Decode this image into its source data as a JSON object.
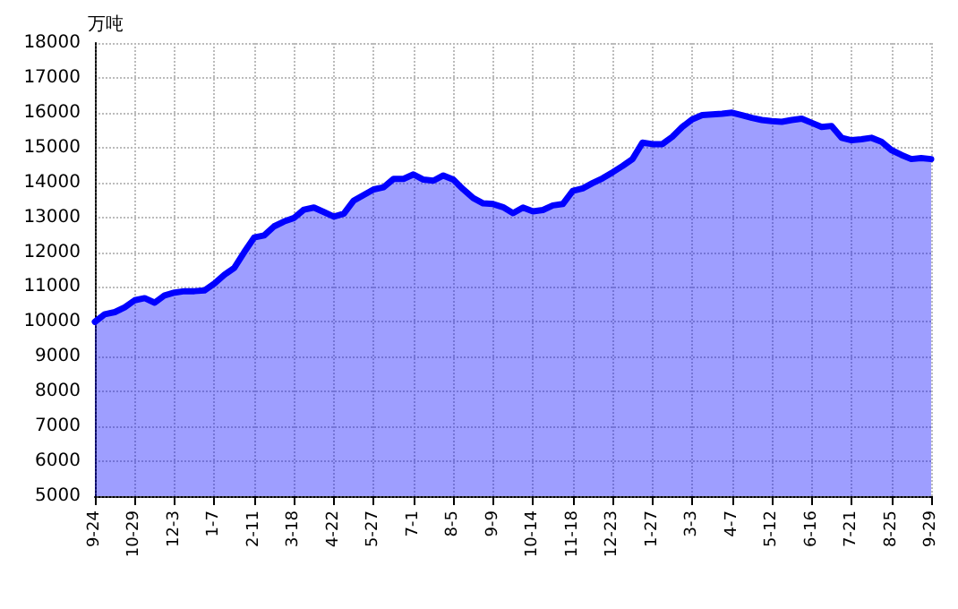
{
  "chart_data": {
    "type": "area",
    "ylabel": "万吨",
    "categories": [
      "9-24",
      null,
      null,
      null,
      "10-29",
      null,
      null,
      null,
      "12-3",
      null,
      null,
      null,
      "1-7",
      null,
      null,
      null,
      "2-11",
      null,
      null,
      null,
      "3-18",
      null,
      null,
      null,
      "4-22",
      null,
      null,
      null,
      "5-27",
      null,
      null,
      null,
      "7-1",
      null,
      null,
      null,
      "8-5",
      null,
      null,
      null,
      "9-9",
      null,
      null,
      null,
      "10-14",
      null,
      null,
      null,
      "11-18",
      null,
      null,
      null,
      "12-23",
      null,
      null,
      null,
      "1-27",
      null,
      null,
      null,
      "3-3",
      null,
      null,
      null,
      "4-7",
      null,
      null,
      null,
      "5-12",
      null,
      null,
      null,
      "6-16",
      null,
      null,
      null,
      "7-21",
      null,
      null,
      null,
      "8-25",
      null,
      null,
      null,
      "9-29"
    ],
    "series": [
      {
        "color": "#0000ff",
        "values": [
          10000,
          10220,
          10280,
          10420,
          10620,
          10680,
          10550,
          10760,
          10840,
          10880,
          10880,
          10900,
          11100,
          11350,
          11550,
          12000,
          12420,
          12480,
          12740,
          12880,
          12980,
          13220,
          13280,
          13150,
          13020,
          13100,
          13480,
          13640,
          13800,
          13860,
          14100,
          14100,
          14230,
          14080,
          14050,
          14200,
          14080,
          13800,
          13550,
          13400,
          13380,
          13290,
          13120,
          13280,
          13170,
          13210,
          13340,
          13380,
          13760,
          13830,
          13980,
          14120,
          14290,
          14470,
          14670,
          15140,
          15100,
          15100,
          15310,
          15590,
          15810,
          15930,
          15950,
          15970,
          16000,
          15930,
          15850,
          15790,
          15760,
          15740,
          15790,
          15830,
          15710,
          15590,
          15620,
          15280,
          15210,
          15240,
          15280,
          15170,
          14930,
          14790,
          14670,
          14700,
          14670
        ]
      }
    ],
    "ylim": [
      5000,
      18000
    ],
    "yticks": [
      5000,
      6000,
      7000,
      8000,
      9000,
      10000,
      11000,
      12000,
      13000,
      14000,
      15000,
      16000,
      17000,
      18000
    ],
    "grid": true,
    "marker": "none",
    "line_style": "solid"
  }
}
